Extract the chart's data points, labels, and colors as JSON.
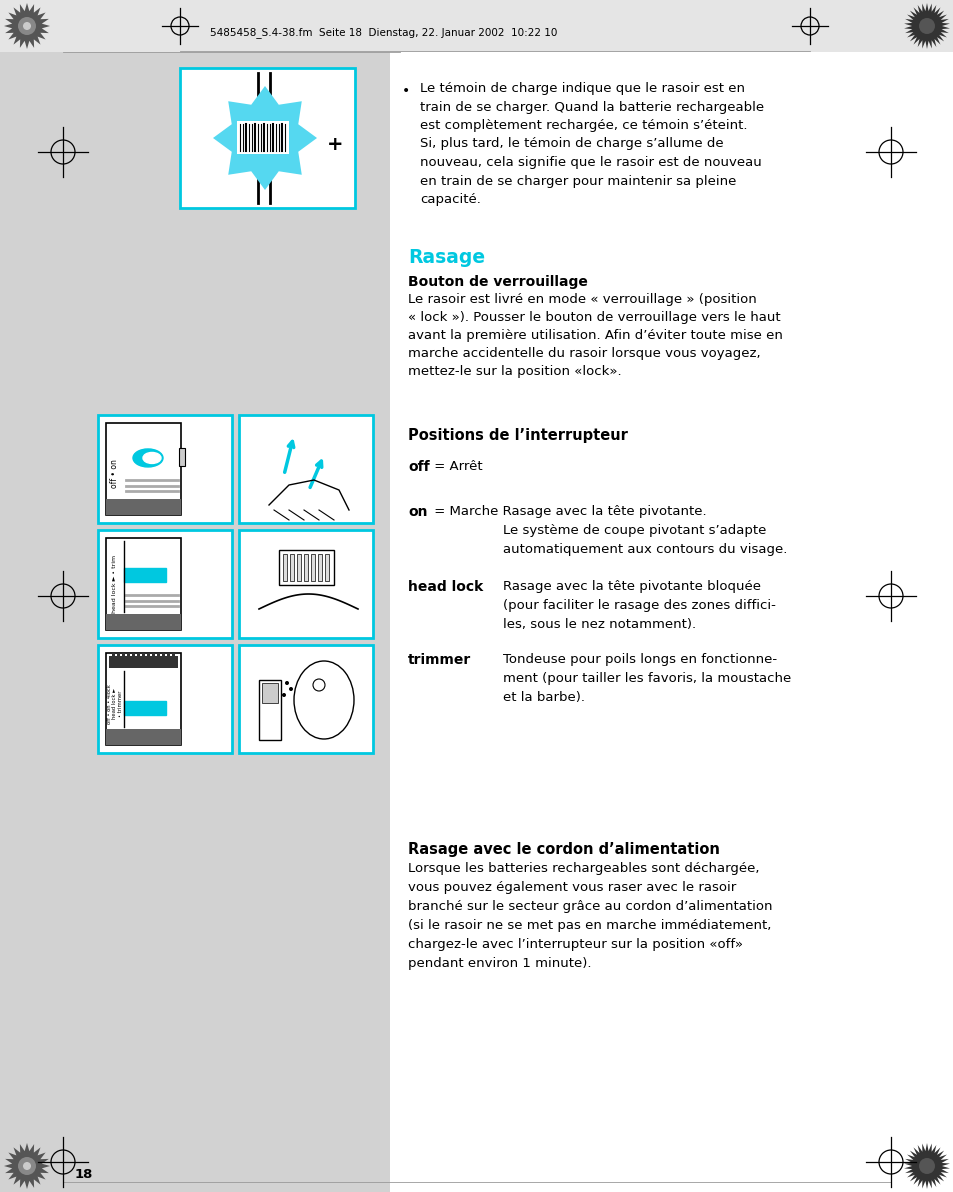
{
  "bg_color": "#d4d4d4",
  "page_bg": "#ffffff",
  "header_line": "5485458_S.4-38.fm  Seite 18  Dienstag, 22. Januar 2002  10:22 10",
  "page_number": "18",
  "cyan_color": "#00c8e0",
  "text_color": "#000000",
  "bullet_text_lines": [
    "Le témoin de charge indique que le rasoir est en",
    "train de se charger. Quand la batterie rechargeable",
    "est complètement rechargée, ce témoin s’éteint.",
    "Si, plus tard, le témoin de charge s’allume de",
    "nouveau, cela signifie que le rasoir est de nouveau",
    "en train de se charger pour maintenir sa pleine",
    "capacité."
  ],
  "section_title": "Rasage",
  "subsection1_title": "Bouton de verrouillage",
  "sub1_lines": [
    "Le rasoir est livré en mode « verrouillage » (position",
    "« lock »). Pousser le bouton de verrouillage vers le haut",
    "avant la première utilisation. Afin d’éviter toute mise en",
    "marche accidentelle du rasoir lorsque vous voyagez,",
    "mettez-le sur la position «lock»."
  ],
  "subsection2_title": "Positions de l’interrupteur",
  "off_label": "off",
  "off_rest": " = Arrêt",
  "on_label": "on",
  "on_rest": " = Marche Rasage avec la tête pivotante.",
  "on_line2": "Le système de coupe pivotant s’adapte",
  "on_line3": "automatiquement aux contours du visage.",
  "headlock_label": "head lock",
  "headlock_lines": [
    "Rasage avec la tête pivotante bloquée",
    "(pour faciliter le rasage des zones diffici-",
    "les, sous le nez notamment)."
  ],
  "trimmer_label": "trimmer",
  "trimmer_lines": [
    "Tondeuse pour poils longs en fonctionne-",
    "ment (pour tailler les favoris, la moustache",
    "et la barbe)."
  ],
  "section3_title": "Rasage avec le cordon d’alimentation",
  "section3_lines": [
    "Lorsque les batteries rechargeables sont déchargée,",
    "vous pouvez également vous raser avec le rasoir",
    "branché sur le secteur grâce au cordon d’alimentation",
    "(si le rasoir ne se met pas en marche immédiatement,",
    "chargez-le avec l’interrupteur sur la position «off»",
    "pendant environ 1 minute)."
  ]
}
